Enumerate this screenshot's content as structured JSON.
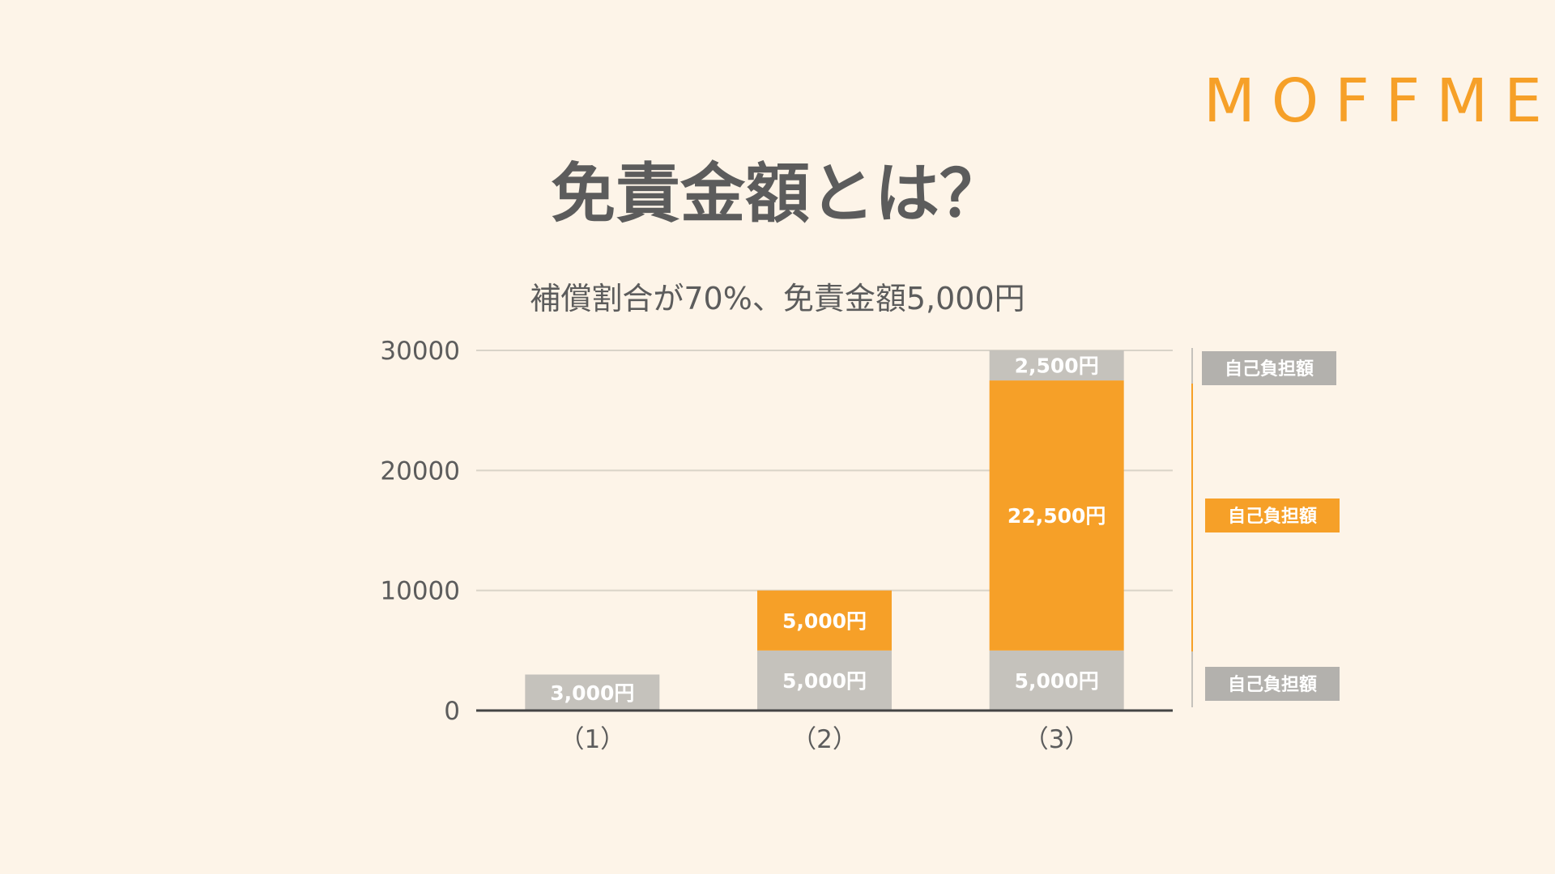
{
  "logo": "MOFFME",
  "title": "免責金額とは？",
  "subtitle": "補償割合が70%、免責金額5,000円",
  "colors": {
    "background": "#fdf4e8",
    "accent": "#f6a028",
    "gray": "#c5c2bc",
    "legend_gray": "#b3b1ad",
    "text": "#5c5c5c",
    "grid": "#d9d3c8",
    "axis": "#444444"
  },
  "chart_data": {
    "type": "bar",
    "stacked": true,
    "categories": [
      "（1）",
      "（2）",
      "（3）"
    ],
    "ylim": [
      0,
      30000
    ],
    "yticks": [
      {
        "value": 0,
        "label": "0"
      },
      {
        "value": 10000,
        "label": "10000"
      },
      {
        "value": 20000,
        "label": "20000"
      },
      {
        "value": 30000,
        "label": "30000"
      }
    ],
    "grid": true,
    "series": [
      {
        "color": "gray",
        "values": [
          3000,
          5000,
          5000
        ],
        "labels": [
          "3,000円",
          "5,000円",
          "5,000円"
        ]
      },
      {
        "color": "accent",
        "values": [
          0,
          5000,
          22500
        ],
        "labels": [
          "",
          "5,000円",
          "22,500円"
        ]
      },
      {
        "color": "gray",
        "values": [
          0,
          0,
          2500
        ],
        "labels": [
          "",
          "",
          "2,500円"
        ]
      }
    ],
    "legend": [
      {
        "label": "自己負担額",
        "color": "legend_gray",
        "position": "top"
      },
      {
        "label": "自己負担額",
        "color": "accent",
        "position": "middle"
      },
      {
        "label": "自己負担額",
        "color": "legend_gray",
        "position": "bottom"
      }
    ]
  }
}
